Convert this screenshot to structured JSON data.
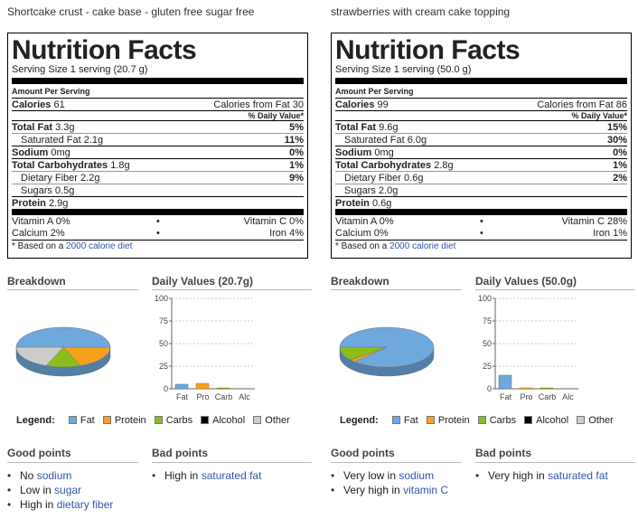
{
  "panels": [
    {
      "title": "Shortcake crust - cake base - gluten free sugar free",
      "label": {
        "heading": "Nutrition Facts",
        "serving": "Serving Size 1 serving (20.7 g)",
        "amount_per": "Amount Per Serving",
        "calories_label": "Calories",
        "calories": "61",
        "cal_fat": "Calories from Fat 30",
        "dv_header": "% Daily Value*",
        "total_fat_label": "Total Fat",
        "total_fat": "3.3g",
        "total_fat_dv": "5%",
        "sat_fat_label": "Saturated Fat",
        "sat_fat": "2.1g",
        "sat_fat_dv": "11%",
        "sodium_label": "Sodium",
        "sodium": "0mg",
        "sodium_dv": "0%",
        "carbs_label": "Total Carbohydrates",
        "carbs": "1.8g",
        "carbs_dv": "1%",
        "fiber_label": "Dietary Fiber",
        "fiber": "2.2g",
        "fiber_dv": "9%",
        "sugars_label": "Sugars",
        "sugars": "0.5g",
        "protein_label": "Protein",
        "protein": "2.9g",
        "vit_a": "Vitamin A 0%",
        "vit_c": "Vitamin C 0%",
        "calcium": "Calcium 2%",
        "iron": "Iron 4%",
        "bullet": "•",
        "foot_prefix": "* Based on a",
        "foot_link": "2000 calorie diet"
      },
      "breakdown_title": "Breakdown",
      "daily_title": "Daily Values (20.7g)",
      "good_title": "Good points",
      "bad_title": "Bad points",
      "good_points": [
        {
          "prefix": "No",
          "link": "sodium"
        },
        {
          "prefix": "Low in",
          "link": "sugar"
        },
        {
          "prefix": "High in",
          "link": "dietary fiber"
        }
      ],
      "bad_points": [
        {
          "prefix": "High in",
          "link": "saturated fat"
        }
      ],
      "chart_data": [
        {
          "type": "pie",
          "categories": [
            "Fat",
            "Protein",
            "Carbs",
            "Alcohol",
            "Other"
          ],
          "values": [
            50,
            19,
            12,
            0,
            19
          ]
        },
        {
          "type": "bar",
          "categories": [
            "Fat",
            "Pro",
            "Carb",
            "Alc"
          ],
          "values": [
            5,
            6,
            1,
            0
          ],
          "ylim": [
            0,
            100
          ],
          "yticks": [
            "0",
            "25",
            "50",
            "75",
            "100"
          ]
        }
      ]
    },
    {
      "title": "strawberries with cream cake topping",
      "label": {
        "heading": "Nutrition Facts",
        "serving": "Serving Size 1 serving (50.0 g)",
        "amount_per": "Amount Per Serving",
        "calories_label": "Calories",
        "calories": "99",
        "cal_fat": "Calories from Fat 86",
        "dv_header": "% Daily Value*",
        "total_fat_label": "Total Fat",
        "total_fat": "9.6g",
        "total_fat_dv": "15%",
        "sat_fat_label": "Saturated Fat",
        "sat_fat": "6.0g",
        "sat_fat_dv": "30%",
        "sodium_label": "Sodium",
        "sodium": "0mg",
        "sodium_dv": "0%",
        "carbs_label": "Total Carbohydrates",
        "carbs": "2.8g",
        "carbs_dv": "1%",
        "fiber_label": "Dietary Fiber",
        "fiber": "0.6g",
        "fiber_dv": "2%",
        "sugars_label": "Sugars",
        "sugars": "2.0g",
        "protein_label": "Protein",
        "protein": "0.6g",
        "vit_a": "Vitamin A 0%",
        "vit_c": "Vitamin C 28%",
        "calcium": "Calcium 0%",
        "iron": "Iron 1%",
        "bullet": "•",
        "foot_prefix": "* Based on a",
        "foot_link": "2000 calorie diet"
      },
      "breakdown_title": "Breakdown",
      "daily_title": "Daily Values (50.0g)",
      "good_title": "Good points",
      "bad_title": "Bad points",
      "good_points": [
        {
          "prefix": "Very low in",
          "link": "sodium"
        },
        {
          "prefix": "Very high in",
          "link": "vitamin C"
        }
      ],
      "bad_points": [
        {
          "prefix": "Very high in",
          "link": "saturated fat"
        }
      ],
      "chart_data": [
        {
          "type": "pie",
          "categories": [
            "Fat",
            "Protein",
            "Carbs",
            "Alcohol",
            "Other"
          ],
          "values": [
            87,
            2,
            11,
            0,
            0
          ]
        },
        {
          "type": "bar",
          "categories": [
            "Fat",
            "Pro",
            "Carb",
            "Alc"
          ],
          "values": [
            15,
            1,
            1,
            0
          ],
          "ylim": [
            0,
            100
          ],
          "yticks": [
            "0",
            "25",
            "50",
            "75",
            "100"
          ]
        }
      ]
    }
  ],
  "legend": {
    "title": "Legend:",
    "items": [
      {
        "name": "Fat",
        "color": "#6fa8dc"
      },
      {
        "name": "Protein",
        "color": "#f4a11d"
      },
      {
        "name": "Carbs",
        "color": "#8cbd1f"
      },
      {
        "name": "Alcohol",
        "color": "#000000"
      },
      {
        "name": "Other",
        "color": "#cccccc"
      }
    ]
  }
}
